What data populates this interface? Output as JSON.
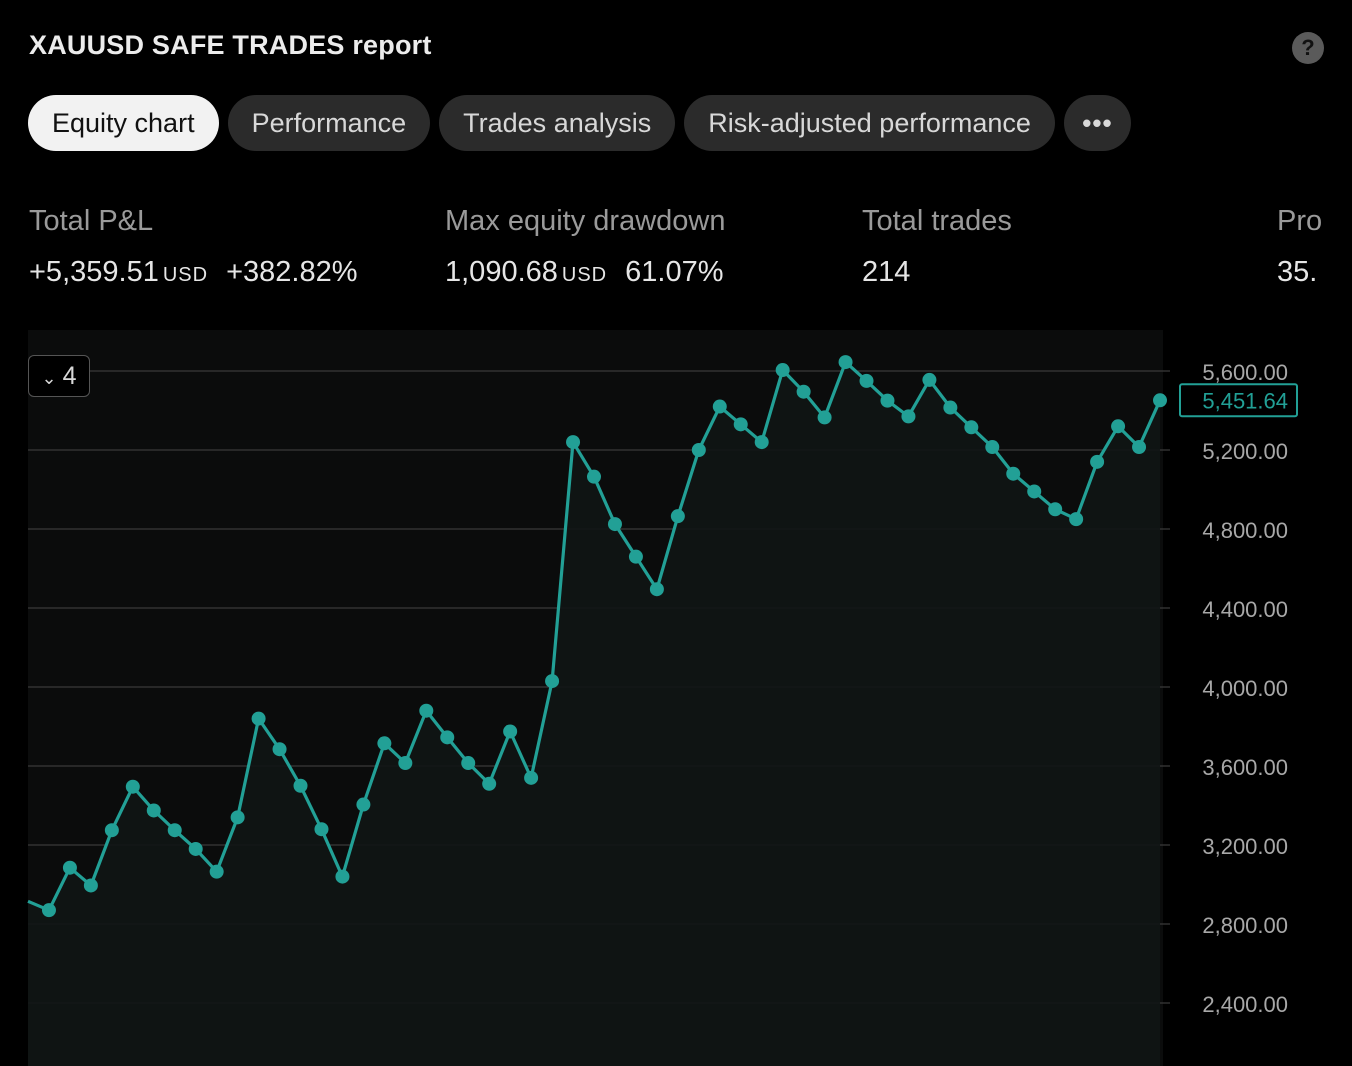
{
  "title": "XAUUSD SAFE TRADES report",
  "help_icon": "question-icon",
  "tabs": [
    {
      "label": "Equity chart",
      "active": true
    },
    {
      "label": "Performance",
      "active": false
    },
    {
      "label": "Trades analysis",
      "active": false
    },
    {
      "label": "Risk-adjusted performance",
      "active": false
    }
  ],
  "more_icon": "ellipsis-icon",
  "more_label": "•••",
  "stats": {
    "total_pl": {
      "label": "Total P&L",
      "value": "+5,359.51",
      "unit": "USD",
      "percent": "+382.82%"
    },
    "max_drawdown": {
      "label": "Max equity drawdown",
      "value": "1,090.68",
      "unit": "USD",
      "percent": "61.07%"
    },
    "total_trades": {
      "label": "Total trades",
      "value": "214"
    },
    "profitable": {
      "label": "Pro",
      "value": "35."
    }
  },
  "collapse_button": {
    "icon": "chevron-down-icon",
    "count": "4"
  },
  "colors": {
    "line": "#22a096",
    "grid": "#3a3a3a",
    "positive": "#22a096"
  },
  "chart_data": {
    "type": "line",
    "ylim": [
      2200,
      5700
    ],
    "yticks": [
      {
        "v": 5600,
        "label": "5,600.00"
      },
      {
        "v": 5200,
        "label": "5,200.00"
      },
      {
        "v": 4800,
        "label": "4,800.00"
      },
      {
        "v": 4400,
        "label": "4,400.00"
      },
      {
        "v": 4000,
        "label": "4,000.00"
      },
      {
        "v": 3600,
        "label": "3,600.00"
      },
      {
        "v": 3200,
        "label": "3,200.00"
      },
      {
        "v": 2800,
        "label": "2,800.00"
      },
      {
        "v": 2400,
        "label": "2,400.00"
      }
    ],
    "last_value_label": "5,451.64",
    "last_value": 5451.64,
    "values": [
      2915,
      2870,
      3085,
      2995,
      3275,
      3495,
      3375,
      3275,
      3180,
      3065,
      3340,
      3840,
      3685,
      3500,
      3280,
      3040,
      3405,
      3715,
      3615,
      3880,
      3745,
      3615,
      3510,
      3775,
      3540,
      4030,
      5240,
      5065,
      4825,
      4660,
      4495,
      4865,
      5200,
      5420,
      5330,
      5240,
      5605,
      5495,
      5365,
      5645,
      5550,
      5450,
      5370,
      5555,
      5415,
      5315,
      5215,
      5080,
      4990,
      4900,
      4850,
      5140,
      5320,
      5215,
      5451.64
    ]
  }
}
